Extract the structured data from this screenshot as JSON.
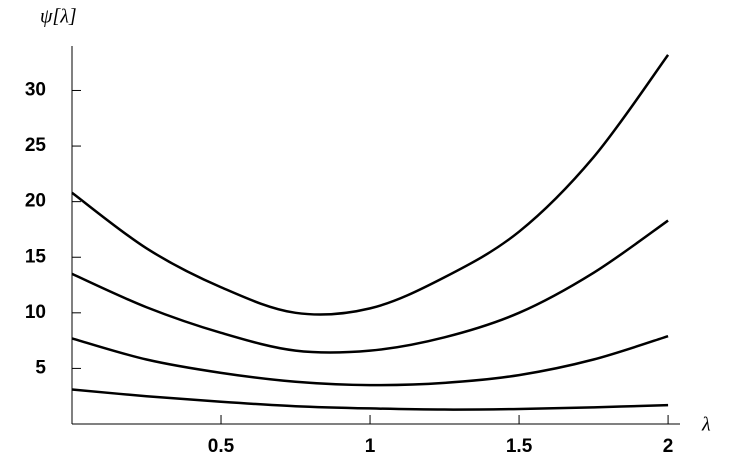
{
  "chart_data": {
    "type": "line",
    "y_label": "ψ[λ]",
    "x_label": "λ",
    "x": [
      0,
      0.25,
      0.5,
      0.75,
      1,
      1.25,
      1.5,
      1.75,
      2
    ],
    "series": [
      {
        "color": "#000000",
        "values": [
          20.8,
          15.8,
          12.3,
          10.0,
          10.4,
          13.2,
          17.3,
          24.0,
          33.2
        ]
      },
      {
        "color": "#000000",
        "values": [
          13.5,
          10.5,
          8.2,
          6.6,
          6.6,
          7.8,
          10.0,
          13.6,
          18.3
        ]
      },
      {
        "color": "#000000",
        "values": [
          7.7,
          5.8,
          4.6,
          3.8,
          3.5,
          3.7,
          4.4,
          5.8,
          7.9
        ]
      },
      {
        "color": "#000000",
        "values": [
          3.1,
          2.5,
          2.0,
          1.6,
          1.4,
          1.3,
          1.35,
          1.5,
          1.7
        ]
      }
    ],
    "xlim": [
      0,
      2.04
    ],
    "ylim": [
      0,
      34
    ],
    "xticks": [
      0.5,
      1,
      1.5,
      2
    ],
    "yticks": [
      5,
      10,
      15,
      20,
      25,
      30
    ]
  }
}
